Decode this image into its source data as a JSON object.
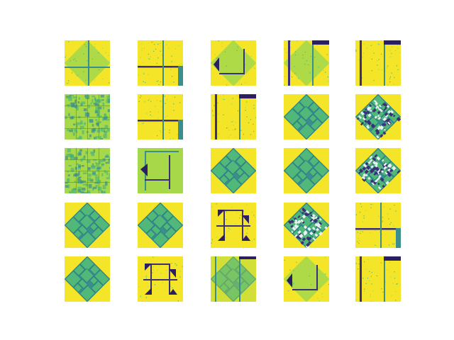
{
  "figure": {
    "rows": 5,
    "cols": 5,
    "colors": {
      "background": "#f4e528",
      "light": "#a7d84a",
      "mid": "#50b878",
      "teal": "#3a8f8e",
      "dark": "#3b2f7a",
      "navy": "#2c1e63"
    },
    "tiles": [
      {
        "kind": "cross",
        "hasDiamond": true
      },
      {
        "kind": "cross-corner",
        "hasDiamond": false
      },
      {
        "kind": "corner-arrow",
        "hasDiamond": true
      },
      {
        "kind": "vertical-bars",
        "hasDiamond": true
      },
      {
        "kind": "vertical-bars",
        "hasDiamond": false
      },
      {
        "kind": "grid-noise",
        "hasDiamond": false
      },
      {
        "kind": "cross-corner",
        "hasDiamond": false
      },
      {
        "kind": "vertical-bars",
        "hasDiamond": false
      },
      {
        "kind": "diamond-mosaic",
        "hasDiamond": true
      },
      {
        "kind": "diamond-speckle",
        "hasDiamond": true
      },
      {
        "kind": "grid-noise",
        "hasDiamond": false
      },
      {
        "kind": "frame-arrow",
        "hasDiamond": false
      },
      {
        "kind": "diamond-mosaic",
        "hasDiamond": true
      },
      {
        "kind": "diamond-mosaic",
        "hasDiamond": true
      },
      {
        "kind": "diamond-speckle",
        "hasDiamond": true
      },
      {
        "kind": "diamond-mosaic",
        "hasDiamond": true
      },
      {
        "kind": "diamond-mosaic",
        "hasDiamond": true
      },
      {
        "kind": "pinwheel",
        "hasDiamond": false
      },
      {
        "kind": "diamond-speckle",
        "hasDiamond": true
      },
      {
        "kind": "cross-corner",
        "hasDiamond": false
      },
      {
        "kind": "diamond-mosaic",
        "hasDiamond": true
      },
      {
        "kind": "pinwheel",
        "hasDiamond": false
      },
      {
        "kind": "diamond-bars",
        "hasDiamond": true
      },
      {
        "kind": "corner-arrow",
        "hasDiamond": true
      },
      {
        "kind": "vertical-bars",
        "hasDiamond": false
      }
    ]
  }
}
